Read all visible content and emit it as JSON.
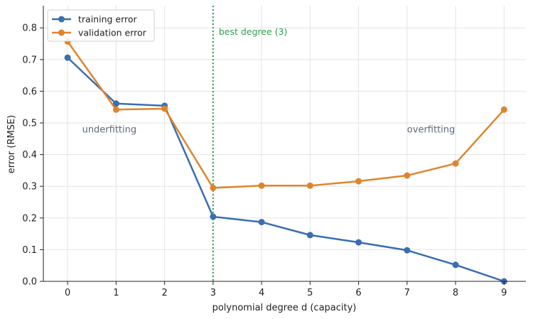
{
  "chart_data": {
    "type": "line",
    "xlabel": "polynomial degree d (capacity)",
    "ylabel": "error (RMSE)",
    "x": [
      0,
      1,
      2,
      3,
      4,
      5,
      6,
      7,
      8,
      9
    ],
    "xlim": [
      -0.5,
      9.45
    ],
    "ylim": [
      0,
      0.87
    ],
    "xticks": [
      0,
      1,
      2,
      3,
      4,
      5,
      6,
      7,
      8,
      9
    ],
    "yticks": [
      0.0,
      0.1,
      0.2,
      0.3,
      0.4,
      0.5,
      0.6,
      0.7,
      0.8
    ],
    "ytick_labels": [
      "0.0",
      "0.1",
      "0.2",
      "0.3",
      "0.4",
      "0.5",
      "0.6",
      "0.7",
      "0.8"
    ],
    "grid": true,
    "legend_position": "top-left",
    "series": [
      {
        "name": "training error",
        "color": "#3b6db3",
        "values": [
          0.706,
          0.561,
          0.554,
          0.204,
          0.187,
          0.146,
          0.123,
          0.098,
          0.052,
          0.0
        ]
      },
      {
        "name": "validation error",
        "color": "#e0842c",
        "values": [
          0.757,
          0.542,
          0.545,
          0.295,
          0.302,
          0.302,
          0.316,
          0.334,
          0.372,
          0.542
        ]
      }
    ],
    "vline": {
      "x": 3,
      "label": "best degree (3)",
      "color": "#2ca04c"
    },
    "annotations": [
      {
        "text": "underfitting",
        "x": 0.3,
        "y": 0.48
      },
      {
        "text": "overfitting",
        "x": 7.0,
        "y": 0.48
      }
    ]
  }
}
